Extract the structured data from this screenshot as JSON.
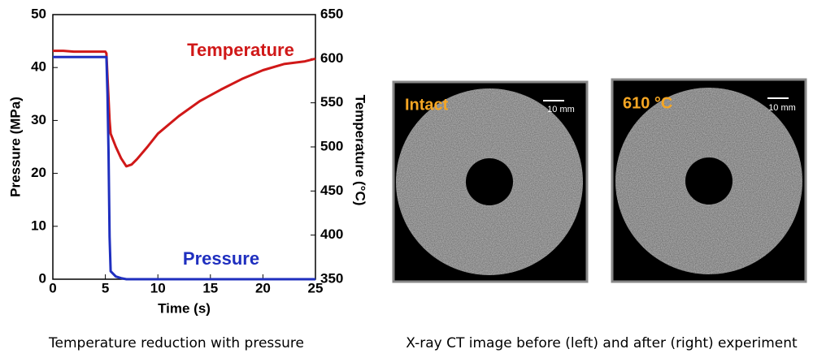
{
  "chart_data": {
    "type": "line",
    "x_label": "Time (s)",
    "y_label": "Pressure (MPa)",
    "y2_label": "Temperature (°C)",
    "x": [
      0,
      1,
      2,
      3,
      4,
      5,
      5.1,
      5.2,
      5.3,
      5.4,
      5.5,
      6,
      6.5,
      7,
      7.5,
      8,
      9,
      10,
      12,
      14,
      16,
      18,
      20,
      22,
      24,
      25
    ],
    "series": [
      {
        "name": "Temperature",
        "color": "#d01818",
        "axis": "y2",
        "values": [
          609,
          609,
          608,
          608,
          608,
          608,
          606,
          580,
          555,
          530,
          515,
          500,
          487,
          478,
          480,
          486,
          500,
          515,
          535,
          552,
          565,
          577,
          587,
          594,
          597,
          600
        ]
      },
      {
        "name": "Pressure",
        "color": "#1f2fbf",
        "values": [
          42,
          42,
          42,
          42,
          42,
          42,
          42,
          35,
          24,
          8,
          1.5,
          0.5,
          0.2,
          0,
          0,
          0,
          0,
          0,
          0,
          0,
          0,
          0,
          0,
          0,
          0,
          0
        ]
      }
    ],
    "xlim": [
      0,
      25
    ],
    "xticks": [
      0,
      5,
      10,
      15,
      20,
      25
    ],
    "ylim": [
      0,
      50
    ],
    "yticks": [
      0,
      10,
      20,
      30,
      40,
      50
    ],
    "y2lim": [
      350,
      650
    ],
    "y2ticks": [
      350,
      400,
      450,
      500,
      550,
      600,
      650
    ],
    "grid": false
  },
  "images": [
    {
      "label": "Intact",
      "scale": "10 mm"
    },
    {
      "label": "610 °C",
      "scale": "10 mm"
    }
  ],
  "captions": [
    "Temperature reduction with pressure",
    "X-ray CT image before (left) and after (right) experiment"
  ]
}
